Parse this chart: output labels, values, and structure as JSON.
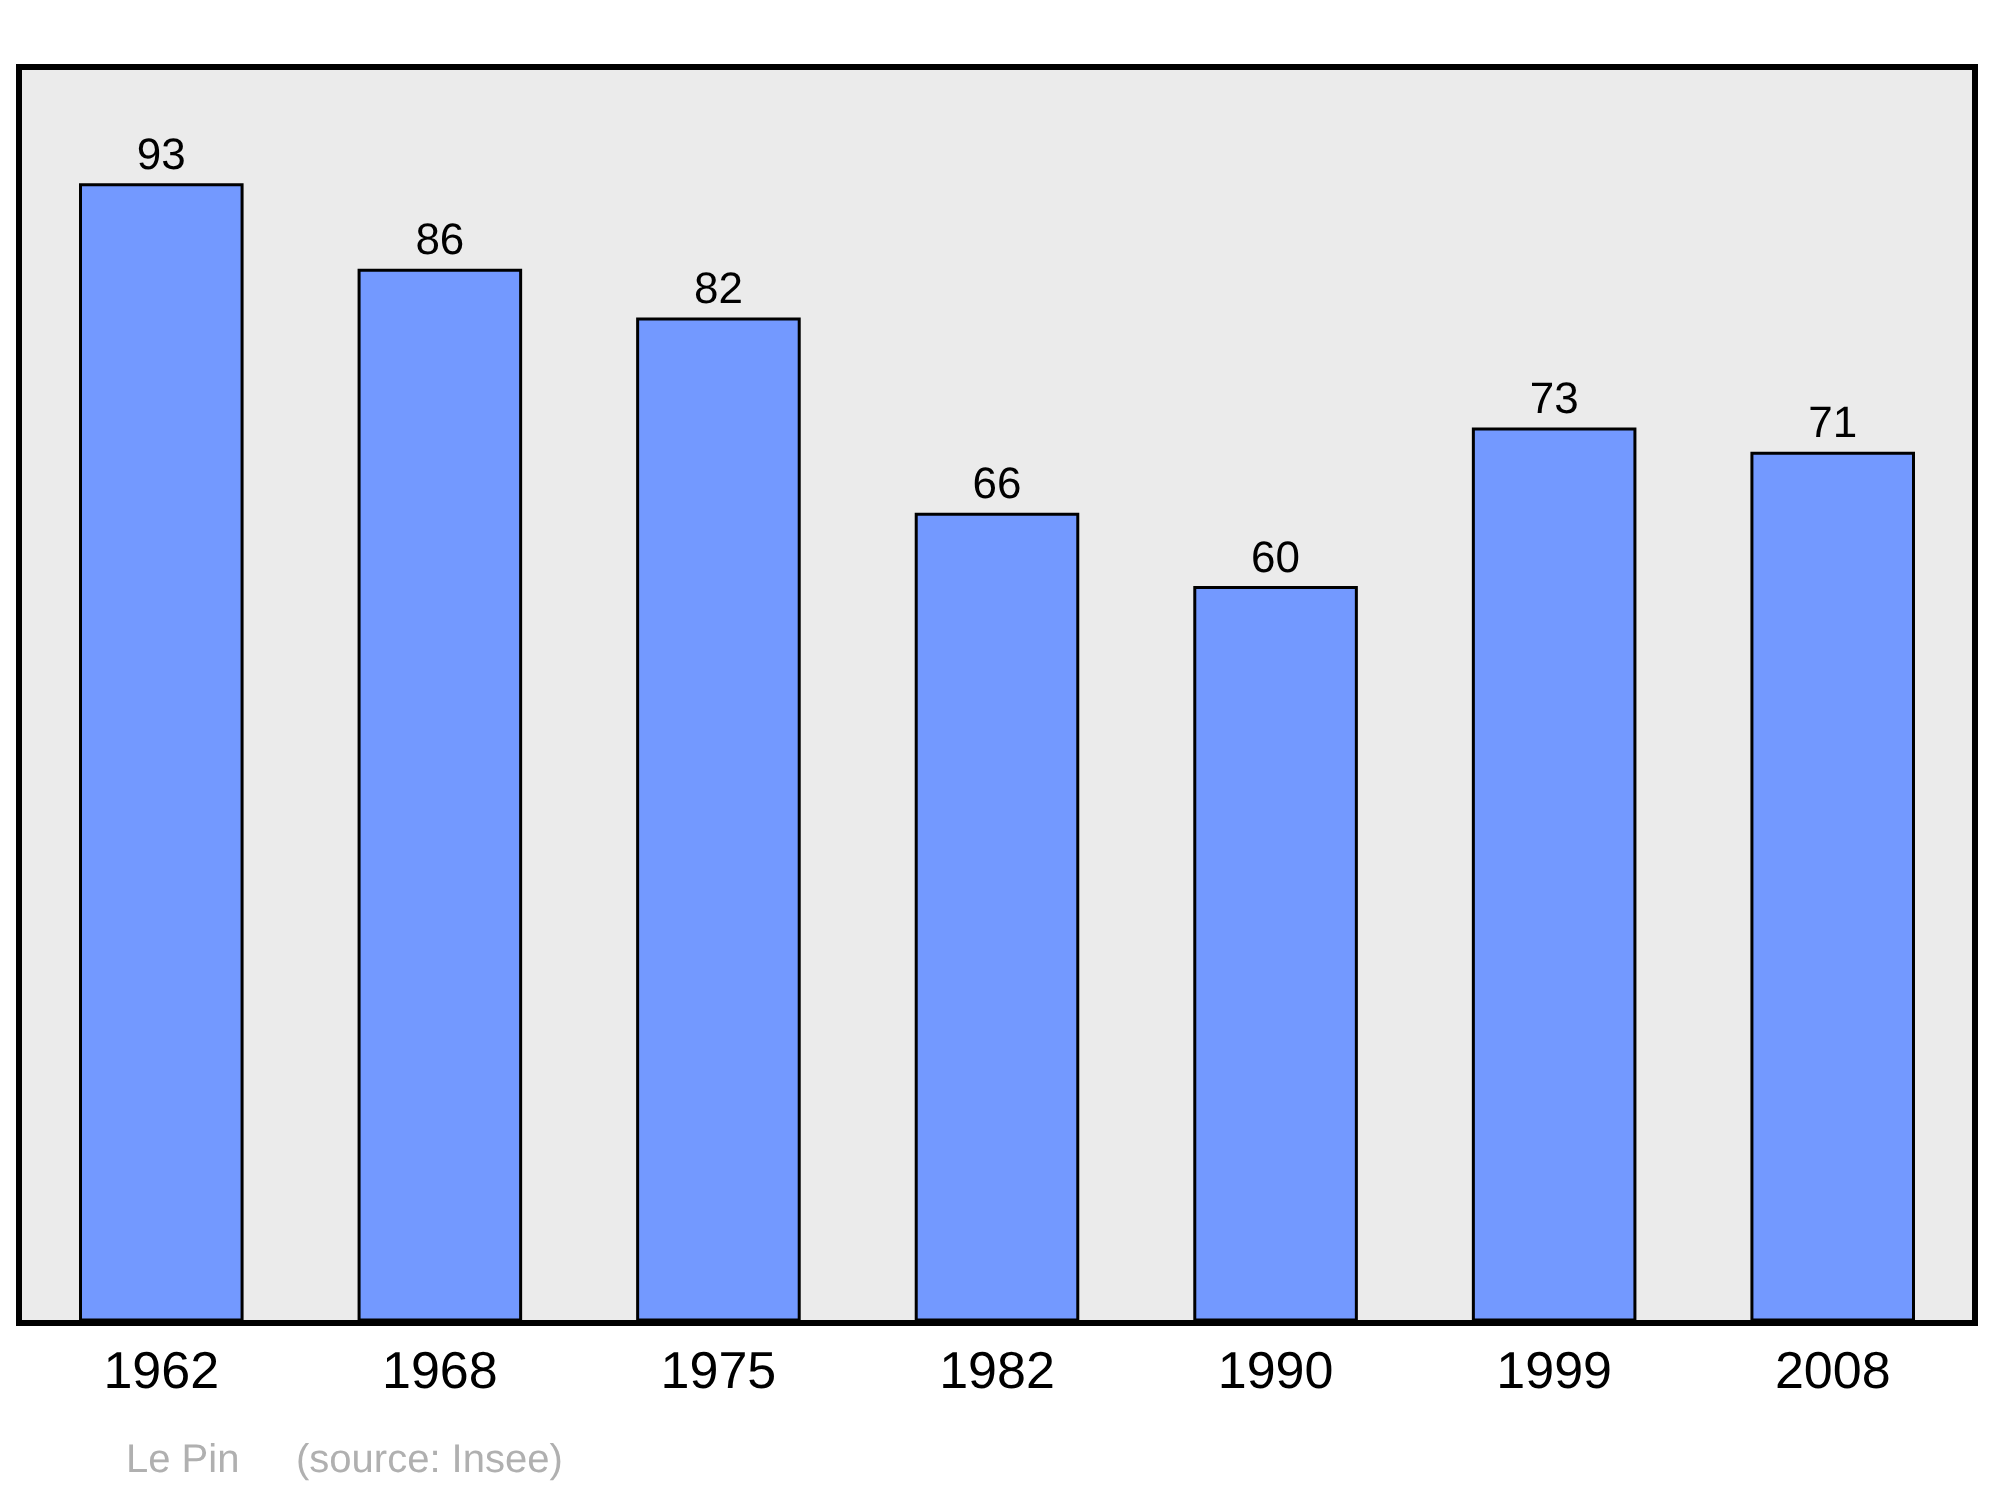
{
  "chart_data": {
    "type": "bar",
    "categories": [
      "1962",
      "1968",
      "1975",
      "1982",
      "1990",
      "1999",
      "2008"
    ],
    "values": [
      93,
      86,
      82,
      66,
      60,
      73,
      71
    ],
    "color": "#7399ff",
    "data_labels": true,
    "ylim": [
      0,
      102.4
    ],
    "tick_labels": "x",
    "grid": false,
    "legend": false,
    "annotations": [
      "Le Pin",
      "(source: Insee)"
    ]
  }
}
